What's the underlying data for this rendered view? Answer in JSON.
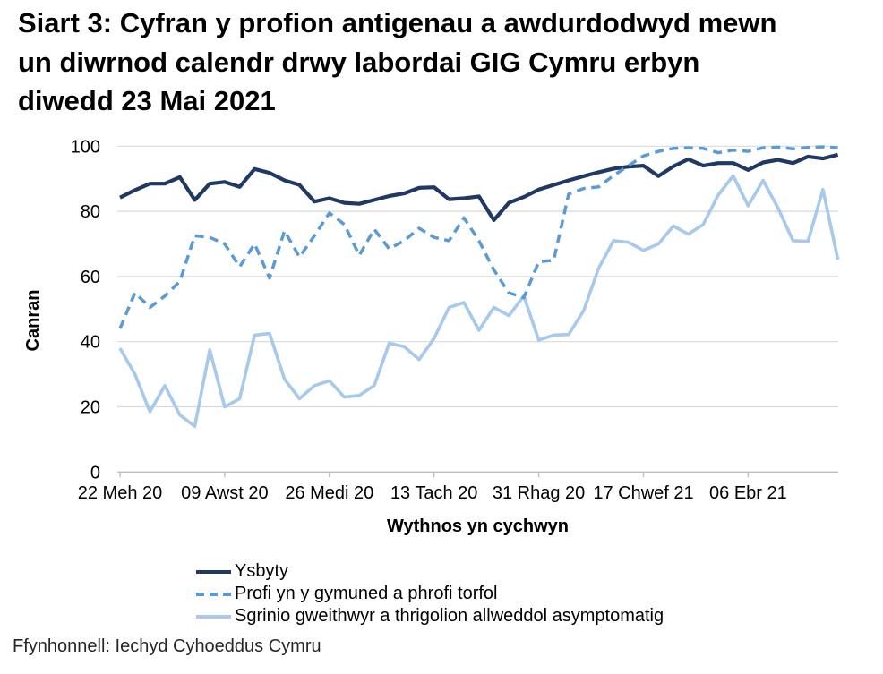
{
  "title": {
    "lines": [
      "Siart 3: Cyfran y profion antigenau a awdurdodwyd mewn",
      "un diwrnod calendr drwy labordai GIG Cymru erbyn",
      "diwedd 23 Mai 2021"
    ]
  },
  "footer": {
    "source": "Ffynhonnell: Iechyd Cyhoeddus Cymru"
  },
  "colors": {
    "grid": "#d9d9d9",
    "axis": "#bfbfbf",
    "text": "#000000"
  },
  "chart_data": {
    "type": "line",
    "title": "Siart 3: Cyfran y profion antigenau a awdurdodwyd mewn un diwrnod calendr drwy labordai GIG Cymru erbyn diwedd 23 Mai 2021",
    "xlabel": "Wythnos yn cychwyn",
    "ylabel": "Canran",
    "ylim": [
      0,
      100
    ],
    "yticks": [
      0,
      20,
      40,
      60,
      80,
      100
    ],
    "grid": "horizontal",
    "legend_position": "bottom",
    "num_points": 49,
    "xticks": {
      "labels": [
        "22 Meh 20",
        "09 Awst 20",
        "26 Medi 20",
        "13 Tach 20",
        "31 Rhag 20",
        "17 Chwef 21",
        "06 Ebr 21"
      ],
      "indices": [
        0,
        7,
        14,
        21,
        28,
        35,
        42
      ]
    },
    "series": [
      {
        "name": "Ysbyty",
        "style": "solid",
        "color": "#1f3864",
        "width": 4.2,
        "values": [
          84.2,
          86.5,
          88.5,
          88.5,
          90.5,
          83.5,
          88.5,
          89,
          87.5,
          93,
          91.8,
          89.5,
          88.1,
          83,
          84,
          82.6,
          82.3,
          83.5,
          84.7,
          85.5,
          87.2,
          87.4,
          83.7,
          84,
          84.6,
          77.3,
          82.6,
          84.4,
          86.7,
          88.1,
          89.5,
          90.8,
          92,
          93.1,
          93.7,
          94,
          90.8,
          93.8,
          96,
          94,
          94.8,
          94.8,
          92.7,
          95,
          95.8,
          94.8,
          96.8,
          96.2,
          97.4
        ]
      },
      {
        "name": "Profi yn y gymuned a phrofi torfol",
        "style": "dashed",
        "color": "#5b9bd5",
        "width": 3.5,
        "values": [
          44,
          55,
          50.5,
          54,
          58.5,
          72.5,
          72,
          70,
          63,
          70,
          59.5,
          74,
          66,
          72.5,
          79.5,
          76,
          66.5,
          74.5,
          68.5,
          71,
          74.8,
          72,
          71,
          78,
          71,
          62,
          55,
          53.5,
          64.5,
          65,
          85.3,
          87,
          87.5,
          91,
          94,
          97,
          98.4,
          99.3,
          99.5,
          99.3,
          98,
          98.8,
          98.4,
          99.5,
          99.7,
          99.2,
          99.6,
          99.8,
          99.5
        ]
      },
      {
        "name": "Sgrinio gweithwyr a thrigolion allweddol asymptomatig",
        "style": "solid",
        "color": "#a6c9ec",
        "width": 3.6,
        "values": [
          38,
          30,
          18.5,
          26.5,
          17.5,
          14,
          37.5,
          20,
          22.5,
          42,
          42.5,
          28.5,
          22.5,
          26.5,
          28,
          23,
          23.5,
          26.5,
          39.5,
          38.5,
          34.5,
          41,
          50.5,
          52,
          43.5,
          50.5,
          48,
          54,
          40.5,
          42,
          42.2,
          49.5,
          62.5,
          71,
          70.5,
          68,
          70,
          75.5,
          73,
          76,
          85,
          90.9,
          81.7,
          89.5,
          81,
          71,
          70.8,
          86.7,
          65.2
        ]
      }
    ]
  }
}
